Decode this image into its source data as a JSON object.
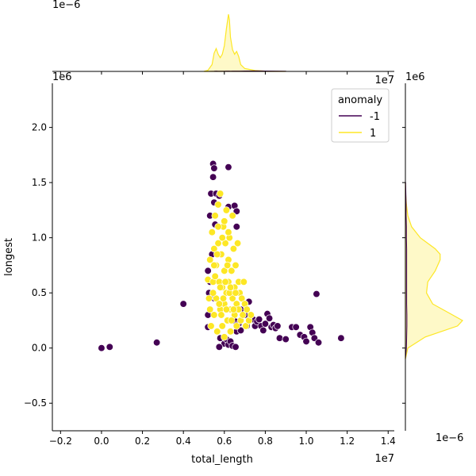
{
  "chart_data": {
    "type": "scatter",
    "subtype": "jointplot",
    "xlabel": "total_length",
    "ylabel": "longest",
    "x_offset_label": "1e7",
    "y_offset_label": "1e6",
    "xlim": [
      -0.24,
      1.43
    ],
    "ylim": [
      -0.75,
      2.4
    ],
    "x_ticks": [
      -0.2,
      0.0,
      0.2,
      0.4,
      0.6,
      0.8,
      1.0,
      1.2,
      1.4
    ],
    "x_tick_labels": [
      "−0.2",
      "0.0",
      "0.2",
      "0.4",
      "0.6",
      "0.8",
      "1.0",
      "1.2",
      "1.4"
    ],
    "y_ticks": [
      -0.5,
      0.0,
      0.5,
      1.0,
      1.5,
      2.0
    ],
    "y_tick_labels": [
      "−0.5",
      "0.0",
      "0.5",
      "1.0",
      "1.5",
      "2.0"
    ],
    "top_marginal_offset_label": "1e−6",
    "top_marginal_xaxis_offset_label": "1e7",
    "right_marginal_offset_label": "1e−6",
    "right_marginal_yaxis_offset_label": "1e6",
    "grid": false,
    "legend": {
      "title": "anomaly",
      "position": "top-right",
      "entries": [
        {
          "label": "-1",
          "color": "#440154"
        },
        {
          "label": "1",
          "color": "#fde725"
        }
      ]
    },
    "colors": {
      "anomaly": "#440154",
      "normal": "#fde725",
      "normal_edge": "#e6d21e"
    },
    "series": [
      {
        "name": "-1",
        "color": "#440154",
        "points": [
          [
            0.0,
            0.0
          ],
          [
            0.04,
            0.01
          ],
          [
            0.27,
            0.05
          ],
          [
            0.4,
            0.4
          ],
          [
            0.52,
            0.7
          ],
          [
            0.53,
            0.6
          ],
          [
            0.535,
            1.4
          ],
          [
            0.53,
            1.2
          ],
          [
            0.545,
            1.55
          ],
          [
            0.545,
            1.67
          ],
          [
            0.55,
            1.63
          ],
          [
            0.55,
            1.32
          ],
          [
            0.555,
            1.12
          ],
          [
            0.56,
            1.4
          ],
          [
            0.575,
            1.38
          ],
          [
            0.62,
            1.64
          ],
          [
            0.62,
            1.28
          ],
          [
            0.65,
            1.29
          ],
          [
            0.66,
            1.24
          ],
          [
            0.66,
            1.1
          ],
          [
            0.54,
            0.85
          ],
          [
            0.525,
            0.5
          ],
          [
            0.52,
            0.3
          ],
          [
            0.52,
            0.19
          ],
          [
            0.55,
            0.45
          ],
          [
            0.58,
            0.09
          ],
          [
            0.6,
            0.04
          ],
          [
            0.61,
            0.08
          ],
          [
            0.62,
            0.03
          ],
          [
            0.63,
            0.06
          ],
          [
            0.655,
            0.24
          ],
          [
            0.66,
            0.15
          ],
          [
            0.67,
            0.22
          ],
          [
            0.68,
            0.35
          ],
          [
            0.7,
            0.3
          ],
          [
            0.71,
            0.2
          ],
          [
            0.72,
            0.42
          ],
          [
            0.73,
            0.27
          ],
          [
            0.74,
            0.26
          ],
          [
            0.75,
            0.2
          ],
          [
            0.76,
            0.24
          ],
          [
            0.77,
            0.26
          ],
          [
            0.78,
            0.2
          ],
          [
            0.79,
            0.16
          ],
          [
            0.8,
            0.22
          ],
          [
            0.81,
            0.31
          ],
          [
            0.82,
            0.27
          ],
          [
            0.83,
            0.19
          ],
          [
            0.84,
            0.21
          ],
          [
            0.85,
            0.18
          ],
          [
            0.86,
            0.2
          ],
          [
            0.87,
            0.09
          ],
          [
            0.9,
            0.08
          ],
          [
            0.93,
            0.19
          ],
          [
            0.95,
            0.19
          ],
          [
            0.97,
            0.12
          ],
          [
            0.99,
            0.1
          ],
          [
            1.0,
            0.06
          ],
          [
            1.02,
            0.19
          ],
          [
            1.03,
            0.14
          ],
          [
            1.04,
            0.09
          ],
          [
            1.05,
            0.49
          ],
          [
            1.06,
            0.05
          ],
          [
            1.17,
            0.09
          ],
          [
            0.64,
            0.02
          ],
          [
            0.655,
            0.01
          ],
          [
            0.575,
            0.01
          ],
          [
            0.68,
            0.16
          ]
        ]
      },
      {
        "name": "1",
        "color": "#fde725",
        "points": [
          [
            0.52,
            0.62
          ],
          [
            0.525,
            0.45
          ],
          [
            0.53,
            0.35
          ],
          [
            0.53,
            0.8
          ],
          [
            0.535,
            0.2
          ],
          [
            0.54,
            1.05
          ],
          [
            0.545,
            0.6
          ],
          [
            0.55,
            0.9
          ],
          [
            0.55,
            0.3
          ],
          [
            0.555,
            1.2
          ],
          [
            0.56,
            0.75
          ],
          [
            0.56,
            0.45
          ],
          [
            0.565,
            0.15
          ],
          [
            0.57,
            1.3
          ],
          [
            0.57,
            0.95
          ],
          [
            0.575,
            0.6
          ],
          [
            0.58,
            1.4
          ],
          [
            0.58,
            0.35
          ],
          [
            0.585,
            0.85
          ],
          [
            0.59,
            0.55
          ],
          [
            0.59,
            0.2
          ],
          [
            0.595,
            1.1
          ],
          [
            0.6,
            0.7
          ],
          [
            0.6,
            0.4
          ],
          [
            0.6,
            0.1
          ],
          [
            0.605,
            0.95
          ],
          [
            0.61,
            1.25
          ],
          [
            0.61,
            0.5
          ],
          [
            0.615,
            0.25
          ],
          [
            0.62,
            0.8
          ],
          [
            0.62,
            0.6
          ],
          [
            0.625,
            1.0
          ],
          [
            0.63,
            0.35
          ],
          [
            0.63,
            0.15
          ],
          [
            0.635,
            0.7
          ],
          [
            0.64,
            0.45
          ],
          [
            0.64,
            1.2
          ],
          [
            0.645,
            0.9
          ],
          [
            0.65,
            0.3
          ],
          [
            0.65,
            0.55
          ],
          [
            0.655,
            0.75
          ],
          [
            0.66,
            0.4
          ],
          [
            0.66,
            0.2
          ],
          [
            0.665,
            0.95
          ],
          [
            0.67,
            0.6
          ],
          [
            0.67,
            0.35
          ],
          [
            0.675,
            0.5
          ],
          [
            0.68,
            0.25
          ],
          [
            0.685,
            0.45
          ],
          [
            0.69,
            0.3
          ],
          [
            0.695,
            0.6
          ],
          [
            0.7,
            0.4
          ],
          [
            0.705,
            0.2
          ],
          [
            0.71,
            0.35
          ],
          [
            0.72,
            0.25
          ],
          [
            0.73,
            0.3
          ],
          [
            0.545,
            0.5
          ],
          [
            0.555,
            0.65
          ],
          [
            0.565,
            0.85
          ],
          [
            0.575,
            0.4
          ],
          [
            0.585,
            0.3
          ],
          [
            0.595,
            0.45
          ],
          [
            0.605,
            0.6
          ],
          [
            0.615,
            0.75
          ],
          [
            0.625,
            0.5
          ],
          [
            0.635,
            0.25
          ],
          [
            0.645,
            0.35
          ],
          [
            0.655,
            0.5
          ],
          [
            0.59,
            1.0
          ],
          [
            0.6,
            1.15
          ],
          [
            0.57,
            1.1
          ],
          [
            0.62,
            1.05
          ],
          [
            0.55,
            0.75
          ],
          [
            0.58,
            0.55
          ],
          [
            0.61,
            0.35
          ],
          [
            0.63,
            0.55
          ]
        ]
      }
    ],
    "marginal_x": {
      "x": [
        0.5,
        0.52,
        0.54,
        0.55,
        0.56,
        0.57,
        0.58,
        0.59,
        0.6,
        0.61,
        0.62,
        0.625,
        0.63,
        0.64,
        0.65,
        0.66,
        0.67,
        0.68,
        0.7,
        0.75,
        0.8,
        0.9
      ],
      "density_1": [
        0,
        0.2,
        1.2,
        3.2,
        4.0,
        3.0,
        2.4,
        3.0,
        4.5,
        7.5,
        10.0,
        9.0,
        6.0,
        3.8,
        3.0,
        3.5,
        2.6,
        1.2,
        0.5,
        0.15,
        0.05,
        0
      ],
      "density_-1": [
        0,
        0,
        0.02,
        0.03,
        0.05,
        0.04,
        0.03,
        0.03,
        0.04,
        0.05,
        0.05,
        0.05,
        0.04,
        0.05,
        0.06,
        0.06,
        0.06,
        0.06,
        0.07,
        0.08,
        0.07,
        0.03
      ]
    },
    "marginal_y": {
      "y": [
        -0.1,
        0.0,
        0.1,
        0.2,
        0.25,
        0.3,
        0.4,
        0.5,
        0.6,
        0.7,
        0.8,
        0.85,
        0.9,
        1.0,
        1.1,
        1.2,
        1.3,
        1.4,
        1.5
      ],
      "density_1": [
        0,
        0.1,
        0.8,
        2.1,
        2.3,
        1.9,
        1.1,
        0.85,
        0.9,
        1.2,
        1.4,
        1.4,
        1.2,
        0.6,
        0.25,
        0.1,
        0.04,
        0.01,
        0
      ],
      "density_-1": [
        0,
        0.04,
        0.05,
        0.06,
        0.06,
        0.06,
        0.05,
        0.05,
        0.05,
        0.05,
        0.05,
        0.05,
        0.05,
        0.04,
        0.04,
        0.03,
        0.03,
        0.02,
        0.01
      ]
    }
  }
}
